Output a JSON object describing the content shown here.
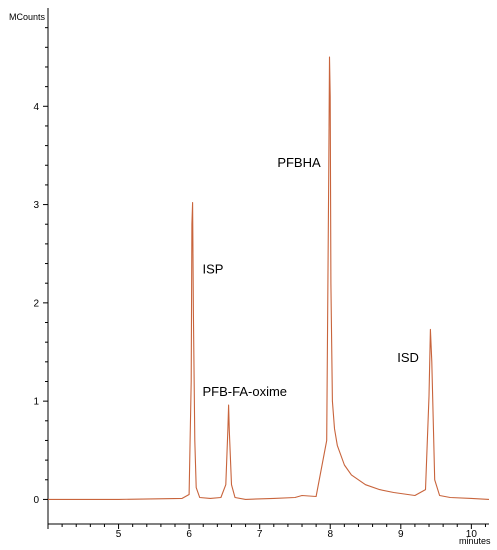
{
  "chart_data": {
    "type": "line",
    "y_unit": "MCounts",
    "x_unit": "minutes",
    "xlim": [
      4.0,
      10.25
    ],
    "ylim": [
      -0.25,
      5.0
    ],
    "x_ticks": [
      "5",
      "6",
      "7",
      "8",
      "9",
      "10"
    ],
    "y_ticks": [
      "0",
      "1",
      "2",
      "3",
      "4"
    ],
    "grid": false,
    "line_color": "#c8643c",
    "series": [
      {
        "x": [
          4.0,
          5.0,
          5.9,
          6.0,
          6.03,
          6.04,
          6.05,
          6.06,
          6.08,
          6.1,
          6.15,
          6.3,
          6.45,
          6.52,
          6.55,
          6.56,
          6.57,
          6.6,
          6.65,
          6.8,
          7.2,
          7.5,
          7.6,
          7.8,
          7.95,
          7.98,
          7.99,
          8.0,
          8.01,
          8.03,
          8.06,
          8.1,
          8.2,
          8.3,
          8.5,
          8.7,
          8.9,
          9.2,
          9.35,
          9.4,
          9.42,
          9.44,
          9.48,
          9.55,
          9.7,
          10.0,
          10.25
        ],
        "y": [
          0.0,
          0.0,
          0.01,
          0.05,
          1.2,
          2.8,
          3.02,
          1.9,
          0.6,
          0.12,
          0.02,
          0.01,
          0.02,
          0.15,
          0.72,
          0.96,
          0.7,
          0.15,
          0.02,
          0.0,
          0.01,
          0.02,
          0.04,
          0.03,
          0.6,
          3.4,
          4.5,
          4.1,
          2.2,
          1.0,
          0.72,
          0.55,
          0.35,
          0.25,
          0.15,
          0.1,
          0.07,
          0.04,
          0.1,
          1.05,
          1.73,
          1.4,
          0.2,
          0.04,
          0.02,
          0.01,
          0.0
        ]
      }
    ],
    "annotations": [
      {
        "text": "PFBHA",
        "x": 7.25,
        "y": 3.38
      },
      {
        "text": "ISP",
        "x": 6.19,
        "y": 2.3
      },
      {
        "text": "PFB-FA-oxime",
        "x": 6.19,
        "y": 1.05
      },
      {
        "text": "ISD",
        "x": 8.95,
        "y": 1.4
      }
    ]
  }
}
